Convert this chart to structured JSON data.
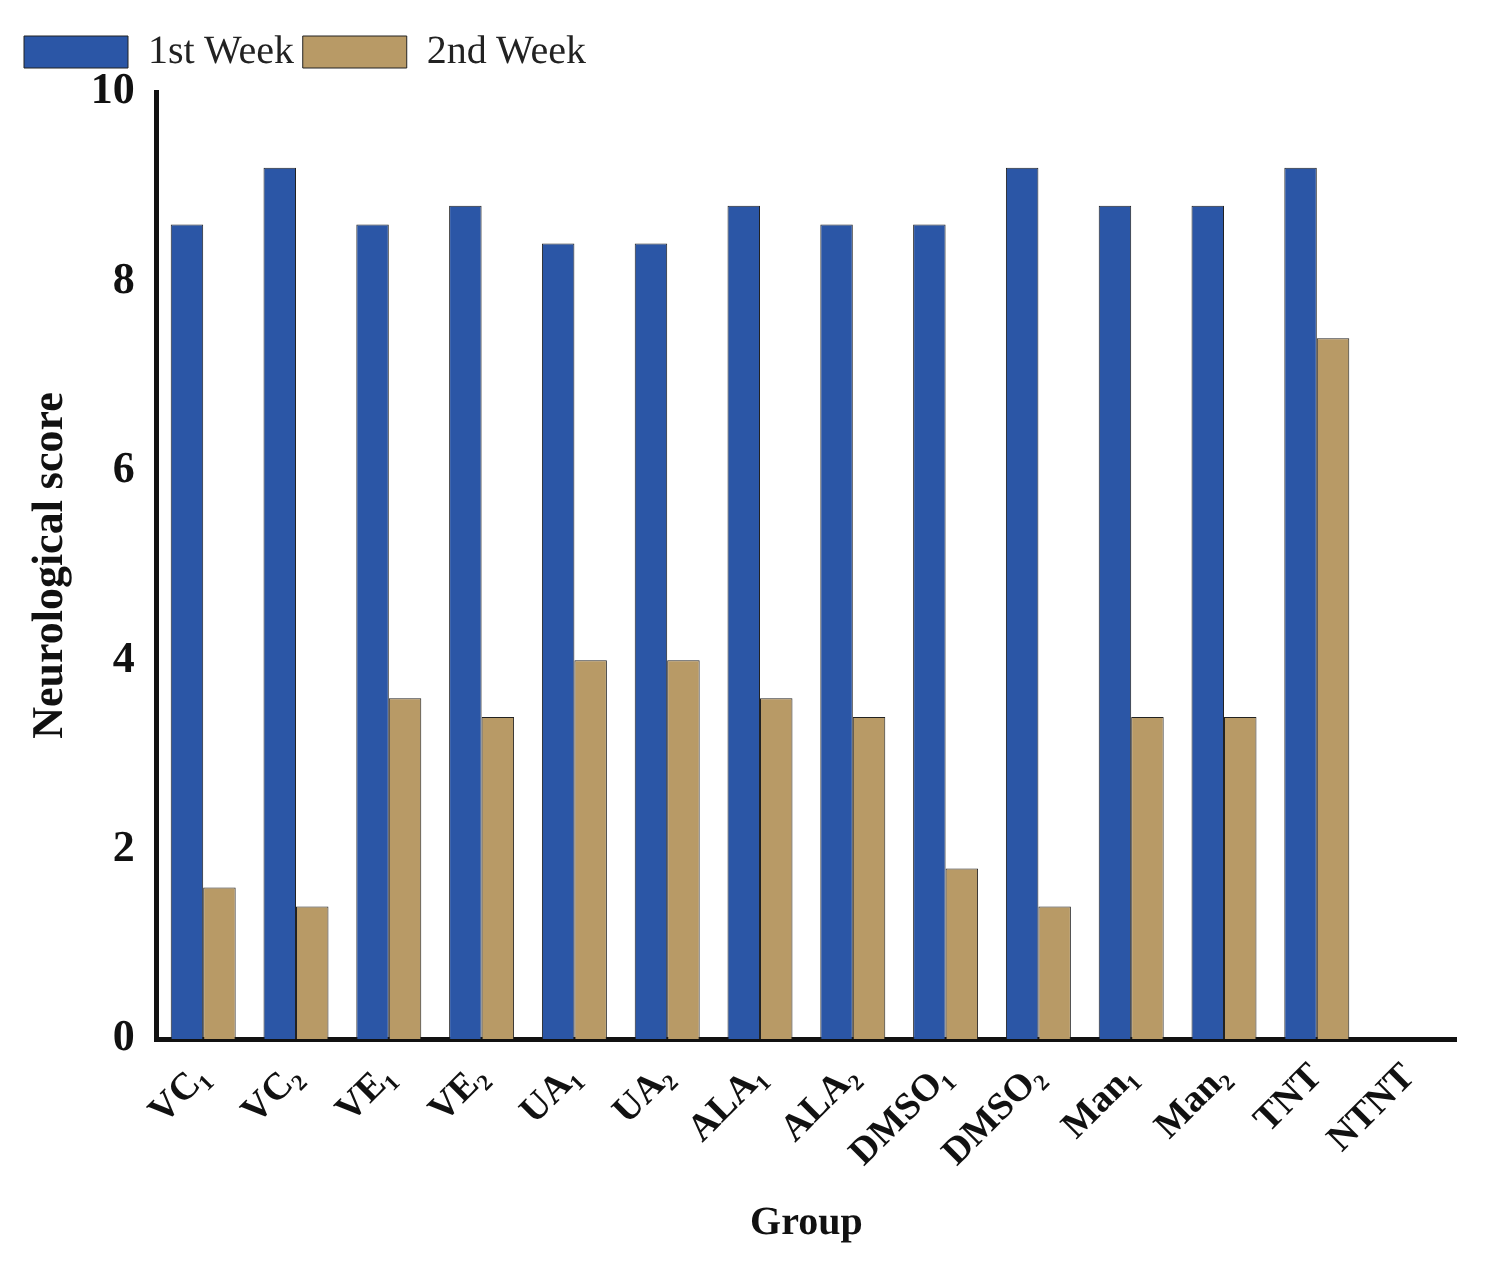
{
  "chart_data": {
    "type": "bar",
    "xlabel": "Group",
    "ylabel": "Neurological score",
    "categories": [
      "VC₁",
      "VC₂",
      "VE₁",
      "VE₂",
      "UA₁",
      "UA₂",
      "ALA₁",
      "ALA₂",
      "DMSO₁",
      "DMSO₂",
      "Man₁",
      "Man₂",
      "TNT",
      "NTNT"
    ],
    "series": [
      {
        "name": "1st Week",
        "color": "#2b56a6",
        "values": [
          8.6,
          9.2,
          8.6,
          8.8,
          8.4,
          8.4,
          8.8,
          8.6,
          8.6,
          9.2,
          8.8,
          8.8,
          9.2,
          null
        ]
      },
      {
        "name": "2nd Week",
        "color": "#b89a66",
        "values": [
          1.6,
          1.4,
          3.6,
          3.4,
          4.0,
          4.0,
          3.6,
          3.4,
          1.8,
          1.4,
          3.4,
          3.4,
          7.4,
          null
        ]
      }
    ],
    "ylim": [
      0,
      10
    ],
    "yticks": [
      0,
      2,
      4,
      6,
      8,
      10
    ],
    "grid": false,
    "legend": "top left"
  }
}
